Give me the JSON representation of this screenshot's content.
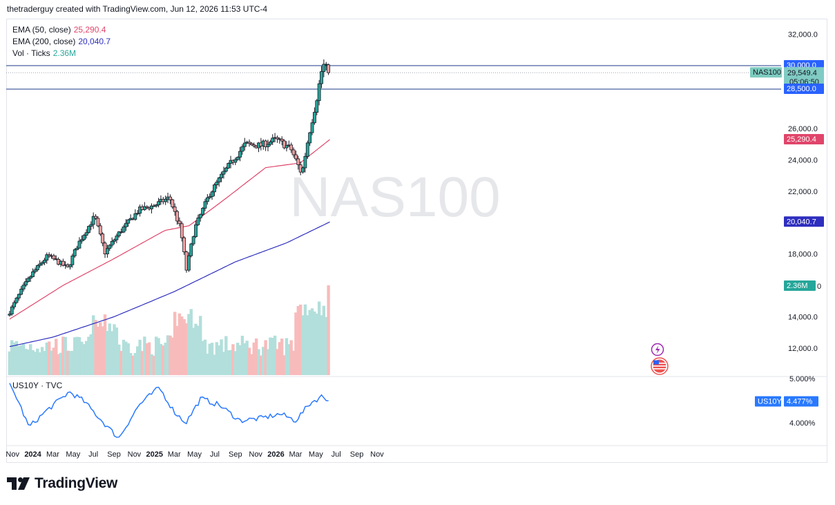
{
  "header": {
    "text": "thetraderguy created with TradingView.com, Jun 12, 2026 11:53 UTC-4"
  },
  "watermark": "NAS100",
  "legend": {
    "ema50": {
      "label": "EMA (50, close)",
      "value": "25,290.4",
      "color": "#e0456a"
    },
    "ema200": {
      "label": "EMA (200, close)",
      "value": "20,040.7",
      "color": "#2e2ebf"
    },
    "vol": {
      "label": "Vol · Ticks",
      "value": "2.36M",
      "color": "#26a69a"
    }
  },
  "price_axis": [
    "32,000.0",
    "26,000.0",
    "24,000.0",
    "22,000.0",
    "18,000.0",
    "14,000.0",
    "12,000.0"
  ],
  "badges": {
    "level_high": "30,000.0",
    "symbol": "NAS100",
    "last_price": "29,549.4",
    "countdown": "05:06:50",
    "level_low": "28,500.0",
    "ema50": "25,290.4",
    "ema200": "20,040.7",
    "volume": "2.36M",
    "volume_axis_stub": "0"
  },
  "pane2": {
    "title": "US10Y · TVC",
    "axis": [
      "5.000%",
      "4.000%"
    ],
    "symbol": "US10Y",
    "last": "4.477%",
    "color": "#2979ff"
  },
  "time_axis": [
    {
      "label": "Nov",
      "bold": false
    },
    {
      "label": "2024",
      "bold": true
    },
    {
      "label": "Mar",
      "bold": false
    },
    {
      "label": "May",
      "bold": false
    },
    {
      "label": "Jul",
      "bold": false
    },
    {
      "label": "Sep",
      "bold": false
    },
    {
      "label": "Nov",
      "bold": false
    },
    {
      "label": "2025",
      "bold": true
    },
    {
      "label": "Mar",
      "bold": false
    },
    {
      "label": "May",
      "bold": false
    },
    {
      "label": "Jul",
      "bold": false
    },
    {
      "label": "Sep",
      "bold": false
    },
    {
      "label": "Nov",
      "bold": false
    },
    {
      "label": "2026",
      "bold": true
    },
    {
      "label": "Mar",
      "bold": false
    },
    {
      "label": "May",
      "bold": false
    },
    {
      "label": "Jul",
      "bold": false
    },
    {
      "label": "Sep",
      "bold": false
    },
    {
      "label": "Nov",
      "bold": false
    }
  ],
  "logo": {
    "text": "TradingView"
  },
  "colors": {
    "up": "#26a69a",
    "down": "#ef5350",
    "level_line": "#1e3a8a",
    "badge_blue": "#2962ff"
  },
  "chart_data": [
    {
      "type": "candlestick",
      "title": "NAS100",
      "timeframe": "weekly",
      "ylim": [
        10800,
        33000
      ],
      "levels": [
        30000,
        28500
      ],
      "last": 29549.4,
      "close_path": [
        [
          "2023-10-23",
          14300
        ],
        [
          "2023-12-01",
          15800
        ],
        [
          "2024-01-01",
          16800
        ],
        [
          "2024-02-15",
          17900
        ],
        [
          "2024-04-15",
          17100
        ],
        [
          "2024-05-15",
          18600
        ],
        [
          "2024-07-05",
          20400
        ],
        [
          "2024-08-05",
          18100
        ],
        [
          "2024-09-15",
          19300
        ],
        [
          "2024-11-15",
          20800
        ],
        [
          "2025-01-01",
          21100
        ],
        [
          "2025-02-15",
          21600
        ],
        [
          "2025-03-20",
          19600
        ],
        [
          "2025-04-07",
          17000
        ],
        [
          "2025-05-01",
          19600
        ],
        [
          "2025-06-15",
          21800
        ],
        [
          "2025-08-01",
          23300
        ],
        [
          "2025-10-01",
          25000
        ],
        [
          "2025-11-15",
          24900
        ],
        [
          "2026-01-01",
          25300
        ],
        [
          "2026-02-15",
          24700
        ],
        [
          "2026-03-20",
          23100
        ],
        [
          "2026-04-10",
          25600
        ],
        [
          "2026-05-01",
          27600
        ],
        [
          "2026-05-22",
          30100
        ],
        [
          "2026-06-12",
          29549
        ]
      ],
      "ema50_path": [
        [
          "2023-10-23",
          13850
        ],
        [
          "2024-04-01",
          16000
        ],
        [
          "2024-09-01",
          17700
        ],
        [
          "2025-02-01",
          19500
        ],
        [
          "2025-04-15",
          19800
        ],
        [
          "2025-08-01",
          21500
        ],
        [
          "2025-12-01",
          23500
        ],
        [
          "2026-03-15",
          23800
        ],
        [
          "2026-06-12",
          25290.4
        ]
      ],
      "ema200_path": [
        [
          "2023-10-23",
          12100
        ],
        [
          "2024-03-01",
          12700
        ],
        [
          "2024-09-01",
          14000
        ],
        [
          "2025-03-01",
          15600
        ],
        [
          "2025-09-01",
          17500
        ],
        [
          "2026-02-01",
          18700
        ],
        [
          "2026-06-12",
          20040.7
        ]
      ],
      "volume": {
        "last": "2.36M"
      }
    },
    {
      "type": "line",
      "title": "US10Y · TVC",
      "ylim": [
        3.6,
        5.1
      ],
      "last": 4.477,
      "series": [
        {
          "name": "US10Y",
          "points": [
            [
              "2023-10-23",
              4.85
            ],
            [
              "2023-11-15",
              4.55
            ],
            [
              "2023-12-20",
              3.9
            ],
            [
              "2024-02-15",
              4.3
            ],
            [
              "2024-04-20",
              4.7
            ],
            [
              "2024-06-01",
              4.5
            ],
            [
              "2024-08-01",
              4.0
            ],
            [
              "2024-09-15",
              3.65
            ],
            [
              "2024-11-15",
              4.4
            ],
            [
              "2025-01-15",
              4.8
            ],
            [
              "2025-03-01",
              4.25
            ],
            [
              "2025-04-05",
              4.0
            ],
            [
              "2025-05-20",
              4.55
            ],
            [
              "2025-07-15",
              4.4
            ],
            [
              "2025-09-15",
              4.05
            ],
            [
              "2025-11-15",
              4.1
            ],
            [
              "2026-01-15",
              4.2
            ],
            [
              "2026-03-01",
              4.05
            ],
            [
              "2026-04-15",
              4.45
            ],
            [
              "2026-05-20",
              4.6
            ],
            [
              "2026-06-12",
              4.477
            ]
          ]
        }
      ]
    }
  ]
}
